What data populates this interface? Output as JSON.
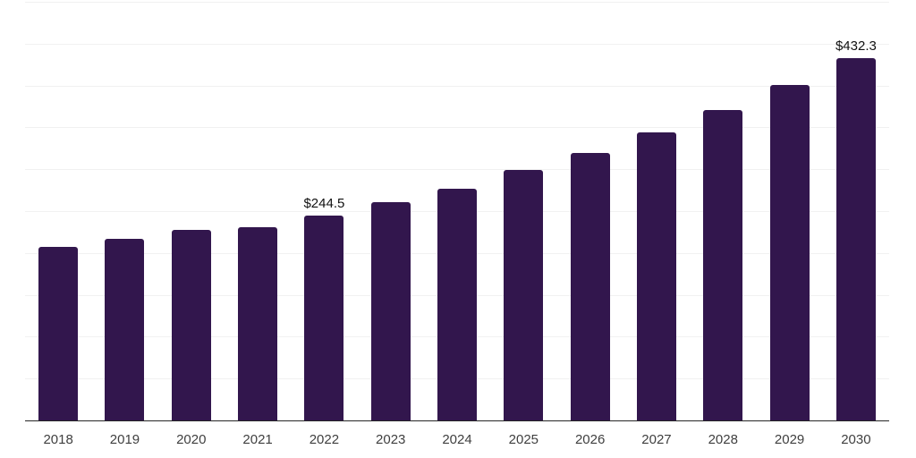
{
  "chart_data": {
    "type": "bar",
    "title": "",
    "xlabel": "",
    "ylabel": "",
    "categories": [
      "2018",
      "2019",
      "2020",
      "2021",
      "2022",
      "2023",
      "2024",
      "2025",
      "2026",
      "2027",
      "2028",
      "2029",
      "2030"
    ],
    "values": [
      207,
      216.5,
      228,
      231,
      244.5,
      260.5,
      277,
      299,
      319.5,
      344,
      370.5,
      400.5,
      432.3
    ],
    "data_labels": [
      "",
      "",
      "",
      "",
      "$244.5",
      "",
      "",
      "",
      "",
      "",
      "",
      "",
      "$432.3"
    ],
    "ylim": [
      0,
      500
    ],
    "gridline_interval": 50,
    "grid": "horizontal",
    "legend": "none",
    "bar_color": "#32164d",
    "gridline_color": "#f1f1f1",
    "axis_line_color": "#262626",
    "tick_label_color": "#3f3f3f",
    "data_label_color": "#111111",
    "background": "#ffffff"
  }
}
